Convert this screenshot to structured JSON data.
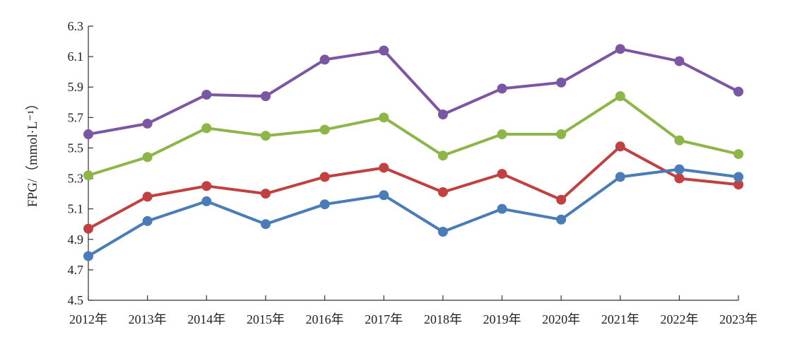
{
  "chart_data": {
    "type": "line",
    "title": "",
    "xlabel": "",
    "ylabel": "FPG/（mmol·L⁻¹）",
    "categories": [
      "2012年",
      "2013年",
      "2014年",
      "2015年",
      "2016年",
      "2017年",
      "2018年",
      "2019年",
      "2020年",
      "2021年",
      "2022年",
      "2023年"
    ],
    "ylim": [
      4.5,
      6.3
    ],
    "yticks": [
      "4.5",
      "4.7",
      "4.9",
      "5.1",
      "5.3",
      "5.5",
      "5.7",
      "5.9",
      "6.1",
      "6.3"
    ],
    "grid": false,
    "series": [
      {
        "color": "#7b56a3",
        "values": [
          5.59,
          5.66,
          5.85,
          5.84,
          6.08,
          6.14,
          5.72,
          5.89,
          5.93,
          6.15,
          6.07,
          5.87
        ]
      },
      {
        "color": "#8db548",
        "values": [
          5.32,
          5.44,
          5.63,
          5.58,
          5.62,
          5.7,
          5.45,
          5.59,
          5.59,
          5.84,
          5.55,
          5.46
        ]
      },
      {
        "color": "#c0413f",
        "values": [
          4.97,
          5.18,
          5.25,
          5.2,
          5.31,
          5.37,
          5.21,
          5.33,
          5.16,
          5.51,
          5.3,
          5.26
        ]
      },
      {
        "color": "#4a7cb8",
        "values": [
          4.79,
          5.02,
          5.15,
          5.0,
          5.13,
          5.19,
          4.95,
          5.1,
          5.03,
          5.31,
          5.36,
          5.31
        ]
      }
    ]
  }
}
